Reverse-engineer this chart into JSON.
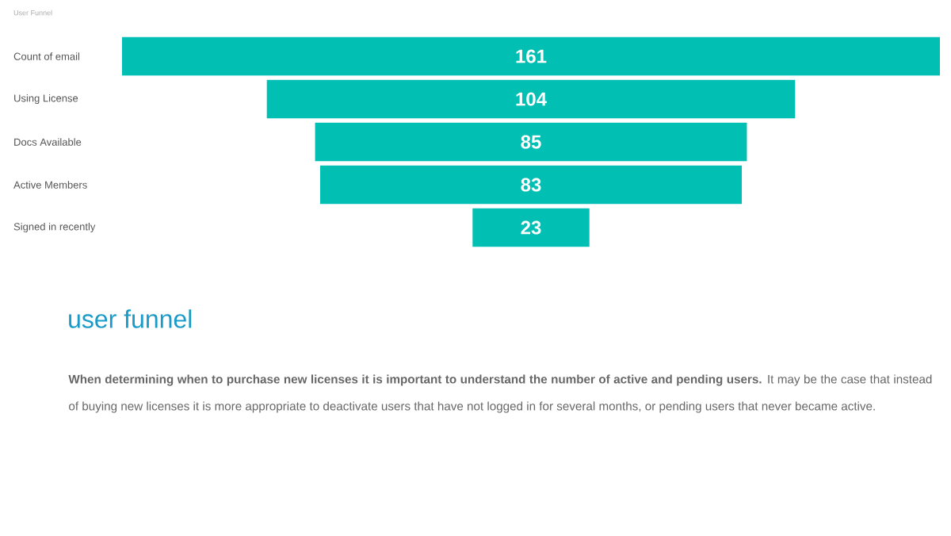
{
  "chart_data": {
    "type": "other",
    "title": "User Funnel",
    "categories": [
      "Count of email",
      "Using License",
      "Docs Available",
      "Active Members",
      "Signed in recently"
    ],
    "values": [
      161,
      104,
      85,
      83,
      23
    ],
    "color": "#01c0b3",
    "data_labels": true,
    "annotations": [
      "user funnel",
      "**When determining when to purchase new licenses it is important to understand the number of active and pending users.** It may be the case that instead of buying new licenses it is more appropriate to deactivate users that have not logged in for several months, or pending users that never became active."
    ]
  }
}
